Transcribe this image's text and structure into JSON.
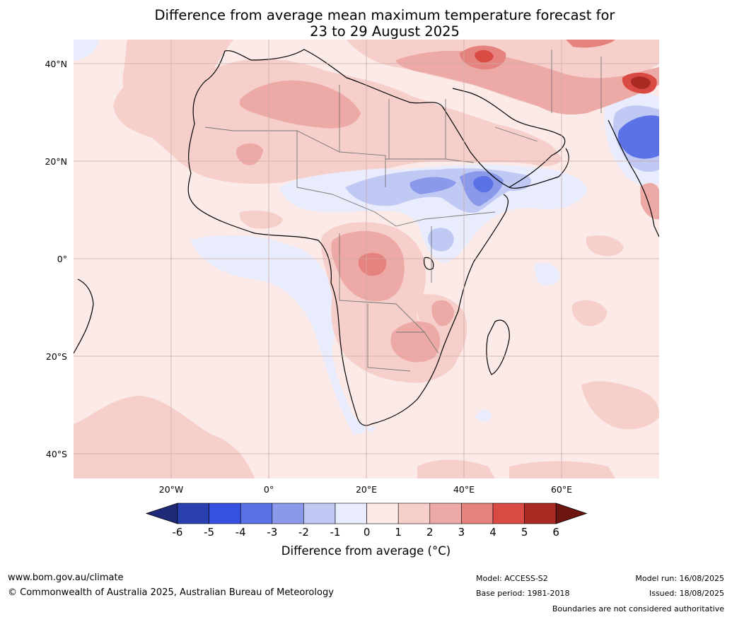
{
  "title_line1": "Difference from average mean maximum temperature forecast for",
  "title_line2": "23 to 29 August 2025",
  "lat_labels": [
    "40°N",
    "20°N",
    "0°",
    "20°S",
    "40°S"
  ],
  "lon_labels": [
    "20°W",
    "0°",
    "20°E",
    "40°E",
    "60°E"
  ],
  "colorbar": {
    "ticks": [
      "-6",
      "-5",
      "-4",
      "-3",
      "-2",
      "-1",
      "0",
      "1",
      "2",
      "3",
      "4",
      "5",
      "6"
    ],
    "colors": [
      "#1e2a78",
      "#2a3fb0",
      "#3651e0",
      "#5b72e6",
      "#8a99ea",
      "#c0c8f4",
      "#e9ecfc",
      "#fbeae8",
      "#f6cfcb",
      "#eda9a5",
      "#e6827d",
      "#d84a42",
      "#a92a23",
      "#6d1510"
    ],
    "label": "Difference from average (°C)"
  },
  "footer": {
    "website": "www.bom.gov.au/climate",
    "copyright": "© Commonwealth of Australia 2025, Australian Bureau of Meteorology",
    "model": "Model: ACCESS-S2",
    "base_period": "Base period: 1981-2018",
    "model_run": "Model run: 16/08/2025",
    "issued": "Issued: 18/08/2025",
    "disclaimer": "Boundaries are not considered authoritative"
  }
}
